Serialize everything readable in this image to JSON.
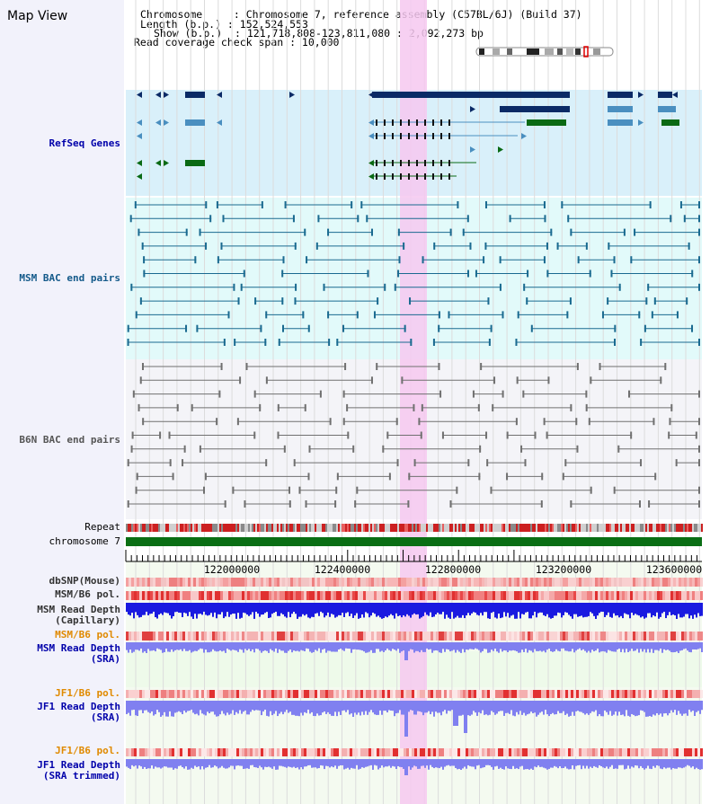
{
  "view_title": "Map View",
  "info": {
    "line1": "Chromosome     : Chromosome 7, reference assembly (C57BL/6J) (Build 37)",
    "line2": "Length (b.p.) : 152,524,553",
    "line3": "Show (b.p.)  : 121,718,808-123,811,080 : 2,092,273 bp",
    "line4": "Read coverage check span : 10,000"
  },
  "tracks": {
    "refseq": "RefSeq Genes",
    "msm_bac": "MSM BAC end pairs",
    "b6n_bac": "B6N BAC end pairs",
    "repeat": "Repeat",
    "chromosome": "chromosome 7",
    "dbsnp": "dbSNP(Mouse)",
    "msm_b6_pol": "MSM/B6 pol.",
    "msm_rd_cap_1": "MSM Read Depth",
    "msm_rd_cap_2": "(Capillary)",
    "msm_b6_pol2": "MSM/B6 pol.",
    "msm_rd_sra_1": "MSM Read Depth",
    "msm_rd_sra_2": "(SRA)",
    "jf1_b6_pol": "JF1/B6 pol.",
    "jf1_rd_sra_1": "JF1 Read Depth",
    "jf1_rd_sra_2": "(SRA)",
    "jf1_b6_pol2": "JF1/B6 pol.",
    "jf1_rd_trim_1": "JF1 Read Depth",
    "jf1_rd_trim_2": "(SRA trimmed)"
  },
  "axis_ticks": [
    "122000000",
    "122400000",
    "122800000",
    "123200000",
    "123600000"
  ],
  "colors": {
    "gene_dark": "#0b2a66",
    "gene_mid": "#4a8fc0",
    "gene_green": "#0a6a14",
    "refseq_bg": "#d9f0fa",
    "msm_bg": "#e2fafa",
    "b6n_bg": "#f4f4f8",
    "highlight": "#f6c8f0",
    "chrom_green": "#0a6e14",
    "depth_blue": "#1a1ae0",
    "depth_light": "#8080f0"
  }
}
